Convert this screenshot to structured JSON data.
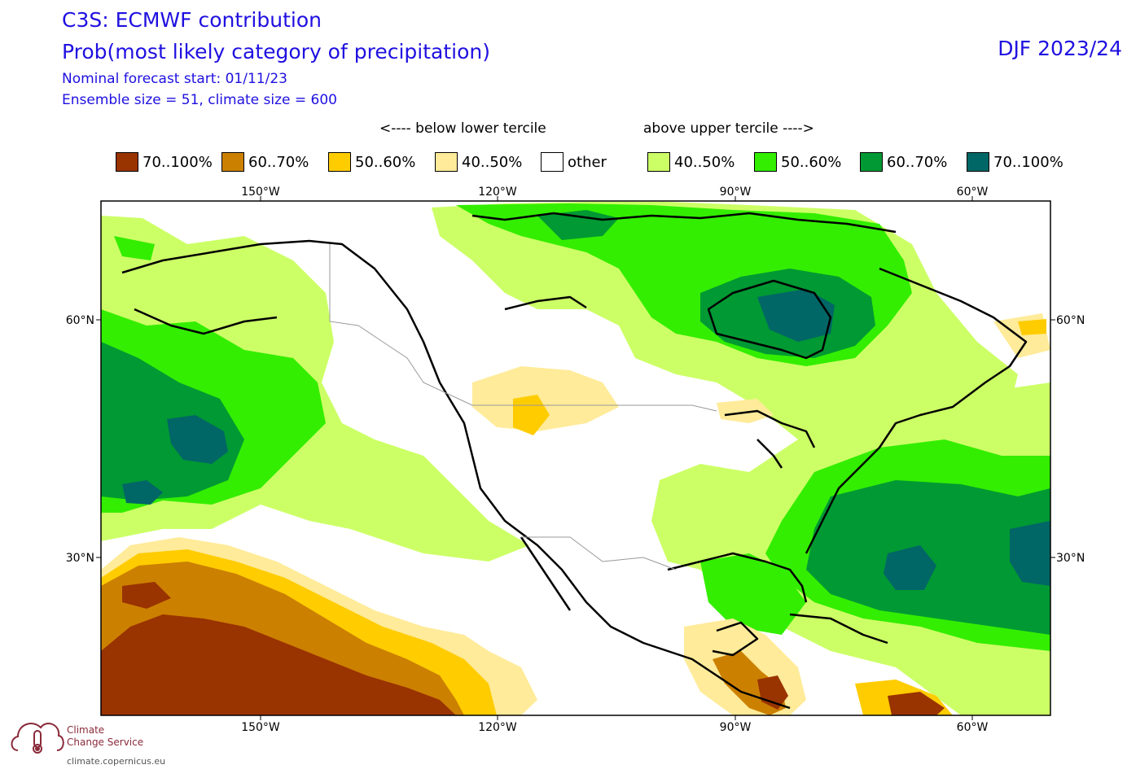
{
  "header": {
    "title_line_1": "C3S: ECMWF contribution",
    "title_line_2": "Prob(most likely category of precipitation)",
    "subtitle_1": "Nominal forecast start: 01/11/23",
    "subtitle_2": "Ensemble size = 51, climate size = 600",
    "season": "DJF 2023/24"
  },
  "legend": {
    "below_caption": "<---- below lower tercile",
    "above_caption": "above upper tercile ---->",
    "items": [
      {
        "label": "70..100%",
        "color": "#993300"
      },
      {
        "label": "60..70%",
        "color": "#cc8000"
      },
      {
        "label": "50..60%",
        "color": "#ffcc00"
      },
      {
        "label": "40..50%",
        "color": "#ffeb99"
      },
      {
        "label": "other",
        "color": "#ffffff"
      },
      {
        "label": "40..50%",
        "color": "#ccff66"
      },
      {
        "label": "50..60%",
        "color": "#33ee00"
      },
      {
        "label": "60..70%",
        "color": "#009933"
      },
      {
        "label": "70..100%",
        "color": "#006666"
      }
    ]
  },
  "map": {
    "lon_labels": [
      "150°W",
      "120°W",
      "90°W",
      "60°W"
    ],
    "lat_labels": [
      "60°N",
      "30°N"
    ]
  },
  "logo": {
    "line_1": "Climate",
    "line_2": "Change Service",
    "url": "climate.copernicus.eu"
  }
}
